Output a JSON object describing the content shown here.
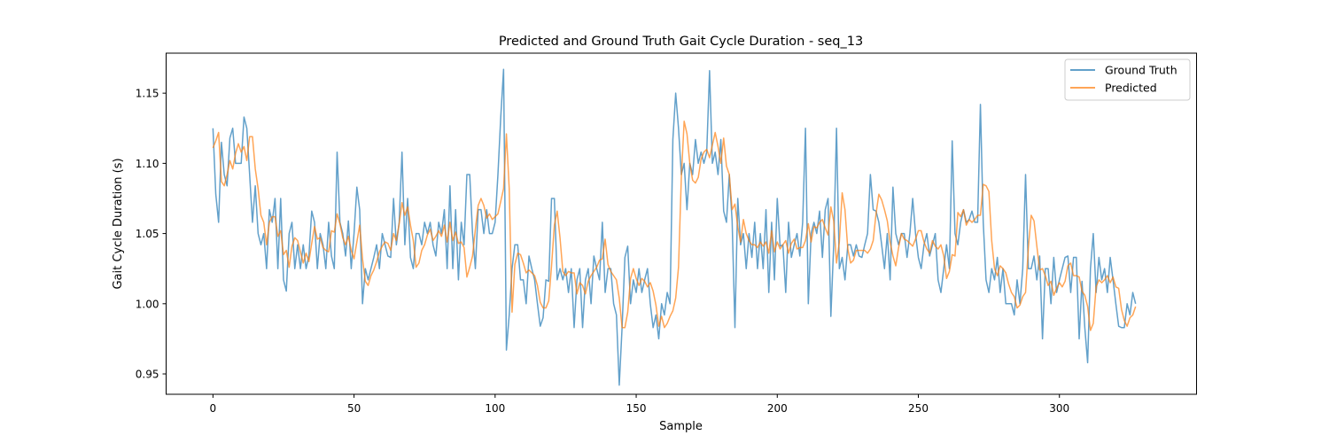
{
  "chart_data": {
    "type": "line",
    "title": "Predicted and Ground Truth Gait Cycle Duration - seq_13",
    "xlabel": "Sample",
    "ylabel": "Gait Cycle Duration (s)",
    "xlim": [
      -16.6,
      348.6
    ],
    "ylim": [
      0.9355,
      1.1785
    ],
    "xticks": [
      0,
      50,
      100,
      150,
      200,
      250,
      300
    ],
    "yticks": [
      0.95,
      1.0,
      1.05,
      1.1,
      1.15
    ],
    "ytick_labels": [
      "0.95",
      "1.00",
      "1.05",
      "1.10",
      "1.15"
    ],
    "legend_position": "upper right",
    "series": [
      {
        "name": "Ground Truth",
        "color": "#1f77b4",
        "opacity": 0.7,
        "values": [
          1.125,
          1.078,
          1.058,
          1.115,
          1.092,
          1.084,
          1.118,
          1.125,
          1.1,
          1.1,
          1.1,
          1.133,
          1.125,
          1.092,
          1.058,
          1.084,
          1.05,
          1.042,
          1.05,
          1.025,
          1.067,
          1.058,
          1.075,
          1.025,
          1.075,
          1.017,
          1.009,
          1.05,
          1.058,
          1.025,
          1.042,
          1.025,
          1.042,
          1.025,
          1.034,
          1.066,
          1.058,
          1.025,
          1.05,
          1.042,
          1.025,
          1.058,
          1.034,
          1.025,
          1.108,
          1.058,
          1.05,
          1.034,
          1.059,
          1.025,
          1.05,
          1.083,
          1.067,
          1.0,
          1.025,
          1.017,
          1.025,
          1.033,
          1.042,
          1.025,
          1.05,
          1.042,
          1.034,
          1.033,
          1.075,
          1.042,
          1.058,
          1.108,
          1.042,
          1.075,
          1.033,
          1.025,
          1.05,
          1.05,
          1.042,
          1.058,
          1.05,
          1.058,
          1.042,
          1.034,
          1.058,
          1.05,
          1.067,
          1.025,
          1.084,
          1.025,
          1.067,
          1.017,
          1.058,
          1.042,
          1.092,
          1.092,
          1.05,
          1.025,
          1.067,
          1.067,
          1.05,
          1.067,
          1.05,
          1.05,
          1.058,
          1.092,
          1.133,
          1.167,
          0.967,
          0.992,
          1.025,
          1.042,
          1.042,
          1.017,
          1.017,
          1.0,
          1.034,
          1.025,
          1.017,
          1.0,
          0.984,
          0.99,
          1.017,
          1.016,
          1.075,
          1.075,
          1.017,
          1.025,
          1.017,
          1.025,
          1.008,
          1.025,
          0.983,
          1.017,
          1.025,
          0.983,
          1.017,
          1.025,
          1.0,
          1.034,
          1.025,
          1.017,
          1.058,
          1.008,
          1.025,
          1.025,
          1.0,
          0.992,
          0.942,
          0.983,
          1.033,
          1.041,
          1.0,
          1.017,
          1.008,
          1.025,
          1.008,
          1.017,
          1.025,
          1.0,
          0.983,
          0.992,
          0.975,
          1.0,
          0.992,
          1.008,
          1.0,
          1.117,
          1.15,
          1.125,
          1.092,
          1.1,
          1.067,
          1.1,
          1.092,
          1.117,
          1.1,
          1.108,
          1.1,
          1.108,
          1.166,
          1.1,
          1.108,
          1.092,
          1.117,
          1.066,
          1.058,
          1.092,
          1.059,
          0.983,
          1.075,
          1.042,
          1.05,
          1.025,
          1.05,
          1.033,
          1.058,
          1.025,
          1.05,
          1.025,
          1.067,
          1.008,
          1.058,
          1.017,
          1.075,
          1.041,
          1.042,
          1.008,
          1.058,
          1.033,
          1.042,
          1.05,
          1.034,
          1.058,
          1.125,
          1.0,
          1.05,
          1.058,
          1.05,
          1.066,
          1.033,
          1.067,
          1.075,
          0.991,
          1.042,
          1.125,
          1.025,
          1.033,
          1.017,
          1.042,
          1.042,
          1.034,
          1.042,
          1.034,
          1.033,
          1.042,
          1.05,
          1.092,
          1.067,
          1.066,
          1.058,
          1.042,
          1.025,
          1.05,
          1.017,
          1.083,
          1.05,
          1.042,
          1.05,
          1.05,
          1.033,
          1.05,
          1.075,
          1.05,
          1.033,
          1.025,
          1.042,
          1.05,
          1.034,
          1.042,
          1.05,
          1.017,
          1.008,
          1.025,
          1.042,
          1.025,
          1.116,
          1.05,
          1.042,
          1.058,
          1.067,
          1.058,
          1.06,
          1.066,
          1.058,
          1.058,
          1.142,
          1.058,
          1.017,
          1.008,
          1.025,
          1.017,
          1.033,
          1.008,
          1.025,
          1.0,
          1.0,
          1.0,
          0.992,
          1.017,
          1.0,
          1.025,
          1.092,
          1.025,
          1.025,
          1.034,
          1.017,
          1.034,
          0.975,
          1.025,
          1.025,
          1.0,
          1.033,
          1.008,
          1.017,
          1.025,
          1.033,
          1.034,
          1.008,
          1.033,
          1.033,
          0.975,
          1.016,
          0.983,
          0.958,
          1.025,
          1.05,
          1.008,
          1.033,
          1.017,
          1.025,
          1.008,
          1.033,
          1.017,
          1.0,
          0.984,
          0.983,
          0.983,
          1.0,
          0.992,
          1.008,
          1.0
        ]
      },
      {
        "name": "Predicted",
        "color": "#ff7f0e",
        "opacity": 0.7,
        "values": [
          1.111,
          1.116,
          1.122,
          1.087,
          1.084,
          1.092,
          1.102,
          1.096,
          1.107,
          1.114,
          1.108,
          1.112,
          1.102,
          1.119,
          1.119,
          1.096,
          1.082,
          1.063,
          1.058,
          1.042,
          1.058,
          1.062,
          1.062,
          1.048,
          1.052,
          1.035,
          1.038,
          1.026,
          1.041,
          1.047,
          1.045,
          1.037,
          1.029,
          1.036,
          1.03,
          1.043,
          1.055,
          1.046,
          1.047,
          1.04,
          1.038,
          1.037,
          1.052,
          1.051,
          1.064,
          1.057,
          1.047,
          1.042,
          1.048,
          1.038,
          1.032,
          1.044,
          1.056,
          1.032,
          1.016,
          1.013,
          1.02,
          1.024,
          1.03,
          1.037,
          1.041,
          1.044,
          1.043,
          1.038,
          1.05,
          1.045,
          1.057,
          1.072,
          1.063,
          1.069,
          1.056,
          1.045,
          1.026,
          1.029,
          1.038,
          1.042,
          1.049,
          1.053,
          1.045,
          1.048,
          1.052,
          1.048,
          1.056,
          1.044,
          1.058,
          1.045,
          1.051,
          1.043,
          1.044,
          1.04,
          1.019,
          1.026,
          1.034,
          1.053,
          1.07,
          1.075,
          1.07,
          1.061,
          1.064,
          1.06,
          1.062,
          1.064,
          1.073,
          1.082,
          1.121,
          1.082,
          0.994,
          1.028,
          1.036,
          1.035,
          1.029,
          1.022,
          1.024,
          1.022,
          1.02,
          1.013,
          1.001,
          0.997,
          0.997,
          1.002,
          1.027,
          1.056,
          1.066,
          1.047,
          1.023,
          1.02,
          1.023,
          1.022,
          1.022,
          1.007,
          1.015,
          1.013,
          1.007,
          1.016,
          1.02,
          1.023,
          1.026,
          1.031,
          1.032,
          1.046,
          1.028,
          1.023,
          1.02,
          1.017,
          1.004,
          0.983,
          0.983,
          0.994,
          1.018,
          1.025,
          1.018,
          1.013,
          1.018,
          1.016,
          1.012,
          1.015,
          1.009,
          0.999,
          0.984,
          0.991,
          0.983,
          0.986,
          0.991,
          0.995,
          1.004,
          1.026,
          1.09,
          1.13,
          1.121,
          1.1,
          1.088,
          1.086,
          1.09,
          1.103,
          1.108,
          1.11,
          1.104,
          1.113,
          1.122,
          1.112,
          1.1,
          1.118,
          1.098,
          1.092,
          1.067,
          1.071,
          1.055,
          1.044,
          1.06,
          1.05,
          1.045,
          1.042,
          1.042,
          1.04,
          1.044,
          1.041,
          1.044,
          1.036,
          1.052,
          1.037,
          1.044,
          1.039,
          1.042,
          1.045,
          1.036,
          1.043,
          1.046,
          1.039,
          1.04,
          1.04,
          1.045,
          1.057,
          1.044,
          1.055,
          1.054,
          1.058,
          1.06,
          1.054,
          1.049,
          1.069,
          1.059,
          1.029,
          1.044,
          1.079,
          1.067,
          1.039,
          1.029,
          1.031,
          1.038,
          1.038,
          1.038,
          1.038,
          1.036,
          1.039,
          1.045,
          1.064,
          1.078,
          1.074,
          1.067,
          1.059,
          1.044,
          1.034,
          1.027,
          1.04,
          1.05,
          1.046,
          1.045,
          1.043,
          1.041,
          1.046,
          1.052,
          1.052,
          1.044,
          1.039,
          1.036,
          1.045,
          1.041,
          1.039,
          1.042,
          1.034,
          1.018,
          1.023,
          1.035,
          1.034,
          1.065,
          1.062,
          1.067,
          1.056,
          1.06,
          1.058,
          1.06,
          1.063,
          1.063,
          1.085,
          1.084,
          1.08,
          1.045,
          1.025,
          1.02,
          1.027,
          1.025,
          1.022,
          1.014,
          1.008,
          1.005,
          0.997,
          0.999,
          1.005,
          1.008,
          1.04,
          1.063,
          1.059,
          1.041,
          1.024,
          1.025,
          1.02,
          1.013,
          1.016,
          1.006,
          1.011,
          1.015,
          1.012,
          1.016,
          1.027,
          1.029,
          1.02,
          1.02,
          1.019,
          1.009,
          1.006,
          0.998,
          0.981,
          0.986,
          1.012,
          1.017,
          1.015,
          1.017,
          1.02,
          1.015,
          1.019,
          1.012,
          1.011,
          0.996,
          0.988,
          0.984,
          0.99,
          0.992,
          0.998
        ]
      }
    ]
  }
}
